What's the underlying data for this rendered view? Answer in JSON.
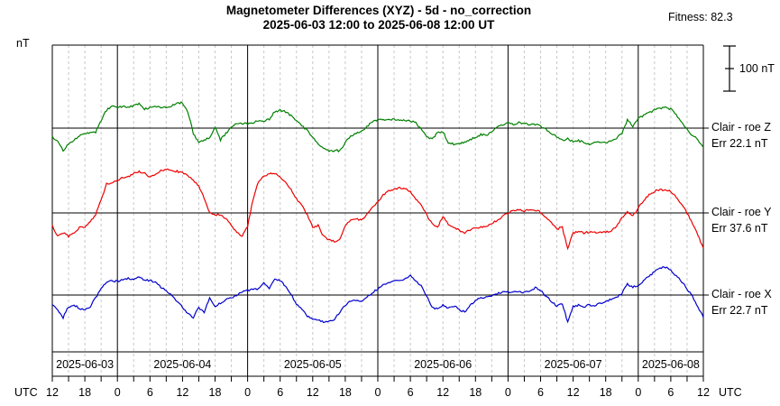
{
  "header": {
    "title_line1": "Magnetometer Differences (XYZ) - 5d - no_correction",
    "title_line2": "2025-06-03 12:00 to 2025-06-08 12:00 UT",
    "fitness": "Fitness: 82.3"
  },
  "axis_labels": {
    "y_unit": "nT",
    "utc_left": "UTC",
    "utc_right": "UTC"
  },
  "scale_bar": {
    "label": "100 nT",
    "value_nT": 100
  },
  "chart_data": {
    "type": "line",
    "title": "Magnetometer Differences (XYZ) - 5d - no_correction",
    "subtitle": "2025-06-03 12:00 to 2025-06-08 12:00 UT",
    "x_unit": "UTC hours",
    "y_unit": "nT",
    "x_start": "2025-06-03 12:00 UT",
    "x_end": "2025-06-08 12:00 UT",
    "x_span_hours": 120,
    "sample_step_hours": 1,
    "minor_grid_step_hours": 3,
    "tick_step_hours": 3,
    "nT_per_pixel": 2,
    "day_boundary_hours": [
      12,
      36,
      60,
      84,
      108
    ],
    "x_tick_labels": [
      {
        "hour": 0,
        "label": "12"
      },
      {
        "hour": 6,
        "label": "18"
      },
      {
        "hour": 12,
        "label": "0"
      },
      {
        "hour": 18,
        "label": "6"
      },
      {
        "hour": 24,
        "label": "12"
      },
      {
        "hour": 30,
        "label": "18"
      },
      {
        "hour": 36,
        "label": "0"
      },
      {
        "hour": 42,
        "label": "6"
      },
      {
        "hour": 48,
        "label": "12"
      },
      {
        "hour": 54,
        "label": "18"
      },
      {
        "hour": 60,
        "label": "0"
      },
      {
        "hour": 66,
        "label": "6"
      },
      {
        "hour": 72,
        "label": "12"
      },
      {
        "hour": 78,
        "label": "18"
      },
      {
        "hour": 84,
        "label": "0"
      },
      {
        "hour": 90,
        "label": "6"
      },
      {
        "hour": 96,
        "label": "12"
      },
      {
        "hour": 102,
        "label": "18"
      },
      {
        "hour": 108,
        "label": "0"
      },
      {
        "hour": 114,
        "label": "6"
      },
      {
        "hour": 120,
        "label": "12"
      }
    ],
    "dates": [
      {
        "label": "2025-06-03",
        "center_hour": 6
      },
      {
        "label": "2025-06-04",
        "center_hour": 24
      },
      {
        "label": "2025-06-05",
        "center_hour": 48
      },
      {
        "label": "2025-06-06",
        "center_hour": 72
      },
      {
        "label": "2025-06-07",
        "center_hour": 96
      },
      {
        "label": "2025-06-08",
        "center_hour": 114
      }
    ],
    "series": [
      {
        "name": "Clair - roe Z",
        "component": "Z",
        "err": "Err 22.1 nT",
        "color": "#008000",
        "values_nT": [
          -20,
          -28,
          -50,
          -36,
          -26,
          -16,
          -12,
          -10,
          -10,
          18,
          40,
          48,
          46,
          48,
          46,
          50,
          54,
          42,
          46,
          48,
          46,
          46,
          50,
          56,
          56,
          36,
          -12,
          -32,
          -26,
          -20,
          2,
          -26,
          -12,
          2,
          10,
          10,
          10,
          12,
          16,
          16,
          20,
          36,
          40,
          36,
          28,
          18,
          6,
          -6,
          -22,
          -34,
          -44,
          -52,
          -50,
          -50,
          -32,
          -18,
          -12,
          -6,
          4,
          14,
          18,
          20,
          18,
          20,
          18,
          18,
          16,
          12,
          -2,
          -18,
          -24,
          -10,
          -8,
          -32,
          -36,
          -34,
          -32,
          -26,
          -20,
          -14,
          -16,
          -8,
          4,
          8,
          12,
          8,
          12,
          10,
          8,
          8,
          4,
          -2,
          -12,
          -20,
          -28,
          -24,
          -30,
          -28,
          -32,
          -36,
          -32,
          -32,
          -32,
          -28,
          -22,
          -12,
          18,
          4,
          22,
          28,
          34,
          40,
          44,
          46,
          42,
          30,
          12,
          -4,
          -16,
          -26,
          -44
        ]
      },
      {
        "name": "Clair - roe Y",
        "component": "Y",
        "err": "Err 37.6 nT",
        "color": "#ee0000",
        "values_nT": [
          -28,
          -52,
          -44,
          -52,
          -44,
          -32,
          -32,
          -20,
          -4,
          28,
          64,
          68,
          72,
          78,
          80,
          88,
          92,
          88,
          80,
          84,
          94,
          96,
          94,
          92,
          90,
          82,
          72,
          60,
          32,
          0,
          -4,
          -4,
          -12,
          -28,
          -44,
          -52,
          -30,
          30,
          70,
          80,
          86,
          88,
          80,
          68,
          52,
          32,
          16,
          -4,
          -32,
          -28,
          -52,
          -60,
          -64,
          -60,
          -28,
          -16,
          -14,
          -16,
          -4,
          12,
          24,
          40,
          48,
          52,
          56,
          54,
          48,
          32,
          16,
          -4,
          -24,
          -32,
          -8,
          -24,
          -32,
          -38,
          -44,
          -38,
          -32,
          -32,
          -30,
          -24,
          -16,
          -8,
          0,
          6,
          8,
          4,
          8,
          6,
          2,
          -10,
          -22,
          -36,
          -32,
          -80,
          -44,
          -42,
          -44,
          -42,
          -44,
          -42,
          -42,
          -40,
          -30,
          -10,
          2,
          -8,
          12,
          28,
          40,
          48,
          52,
          50,
          48,
          36,
          20,
          0,
          -24,
          -48,
          -80
        ]
      },
      {
        "name": "Clair - roe X",
        "component": "X",
        "err": "Err 22.7 nT",
        "color": "#0000cc",
        "values_nT": [
          -22,
          -34,
          -50,
          -26,
          -22,
          -30,
          -34,
          -26,
          -6,
          14,
          28,
          32,
          30,
          34,
          38,
          34,
          40,
          34,
          32,
          28,
          18,
          10,
          0,
          -14,
          -26,
          -42,
          -50,
          -28,
          -40,
          -6,
          -26,
          -18,
          -10,
          -6,
          0,
          8,
          10,
          12,
          14,
          26,
          16,
          36,
          32,
          20,
          2,
          -22,
          -30,
          -46,
          -52,
          -54,
          -60,
          -58,
          -54,
          -38,
          -22,
          -14,
          -12,
          -14,
          -6,
          6,
          14,
          22,
          28,
          30,
          32,
          36,
          44,
          30,
          22,
          -2,
          -26,
          -32,
          -22,
          -30,
          -24,
          -32,
          -38,
          -22,
          -12,
          -6,
          -4,
          -2,
          2,
          8,
          6,
          6,
          8,
          6,
          10,
          16,
          10,
          -2,
          -14,
          -24,
          -20,
          -60,
          -26,
          -22,
          -26,
          -22,
          -24,
          -18,
          -14,
          -10,
          -6,
          4,
          24,
          18,
          20,
          32,
          42,
          52,
          60,
          62,
          54,
          42,
          30,
          14,
          -4,
          -26,
          -50
        ]
      }
    ]
  }
}
